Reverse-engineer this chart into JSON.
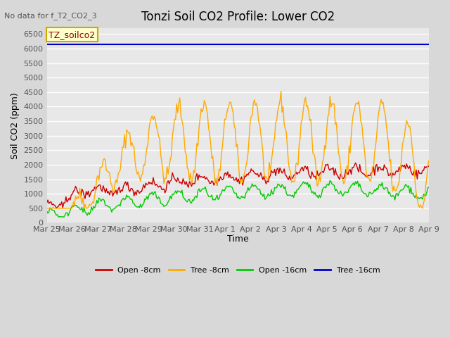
{
  "title": "Tonzi Soil CO2 Profile: Lower CO2",
  "no_data_text": "No data for f_T2_CO2_3",
  "ylabel": "Soil CO2 (ppm)",
  "xlabel": "Time",
  "legend_label": "TZ_soilco2",
  "ylim": [
    0,
    6700
  ],
  "yticks": [
    0,
    500,
    1000,
    1500,
    2000,
    2500,
    3000,
    3500,
    4000,
    4500,
    5000,
    5500,
    6000,
    6500
  ],
  "bg_color": "#d8d8d8",
  "plot_bg_color": "#e8e8e8",
  "grid_color": "white",
  "colors": {
    "open_8cm": "#cc0000",
    "tree_8cm": "#ffaa00",
    "open_16cm": "#00cc00",
    "tree_16cm": "#0000cc"
  },
  "legend_entries": [
    "Open -8cm",
    "Tree -8cm",
    "Open -16cm",
    "Tree -16cm"
  ],
  "tree_16cm_value": 6150,
  "x_tick_labels": [
    "Mar 25",
    "Mar 26",
    "Mar 27",
    "Mar 28",
    "Mar 29",
    "Mar 30",
    "Mar 31",
    "Apr 1",
    "Apr 2",
    "Apr 3",
    "Apr 4",
    "Apr 5",
    "Apr 6",
    "Apr 7",
    "Apr 8",
    "Apr 9"
  ],
  "n_days": 15
}
